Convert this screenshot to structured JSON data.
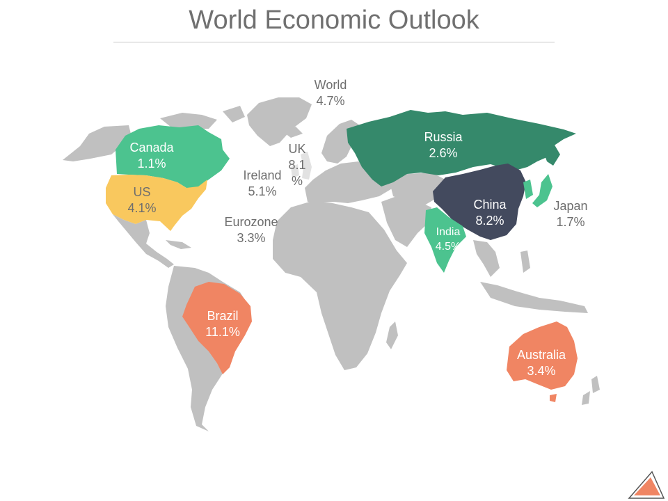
{
  "title": "World Economic Outlook",
  "colors": {
    "land": "#c0c0c0",
    "canada": "#4cc38f",
    "us": "#f9c85e",
    "russia": "#35896b",
    "china": "#434a5e",
    "india": "#4cc38f",
    "brazil": "#f08563",
    "australia": "#f08563",
    "japan": "#4cc38f",
    "dark_text": "#6e6e6e",
    "light_text": "#ffffff"
  },
  "labels": {
    "world": {
      "name": "World",
      "value": "4.7%"
    },
    "canada": {
      "name": "Canada",
      "value": "1.1%"
    },
    "us": {
      "name": "US",
      "value": "4.1%"
    },
    "uk": {
      "name": "UK",
      "value": "8.1",
      "value2": "%"
    },
    "ireland": {
      "name": "Ireland",
      "value": "5.1%"
    },
    "eurozone": {
      "name": "Eurozone",
      "value": "3.3%"
    },
    "russia": {
      "name": "Russia",
      "value": "2.6%"
    },
    "china": {
      "name": "China",
      "value": "8.2%"
    },
    "japan": {
      "name": "Japan",
      "value": "1.7%"
    },
    "india": {
      "name": "India",
      "value": "4.5%"
    },
    "brazil": {
      "name": "Brazil",
      "value": "11.1%"
    },
    "australia": {
      "name": "Australia",
      "value": "3.4%"
    }
  },
  "logo": {
    "icon": "triangle-logo-icon",
    "color": "#f08563"
  }
}
